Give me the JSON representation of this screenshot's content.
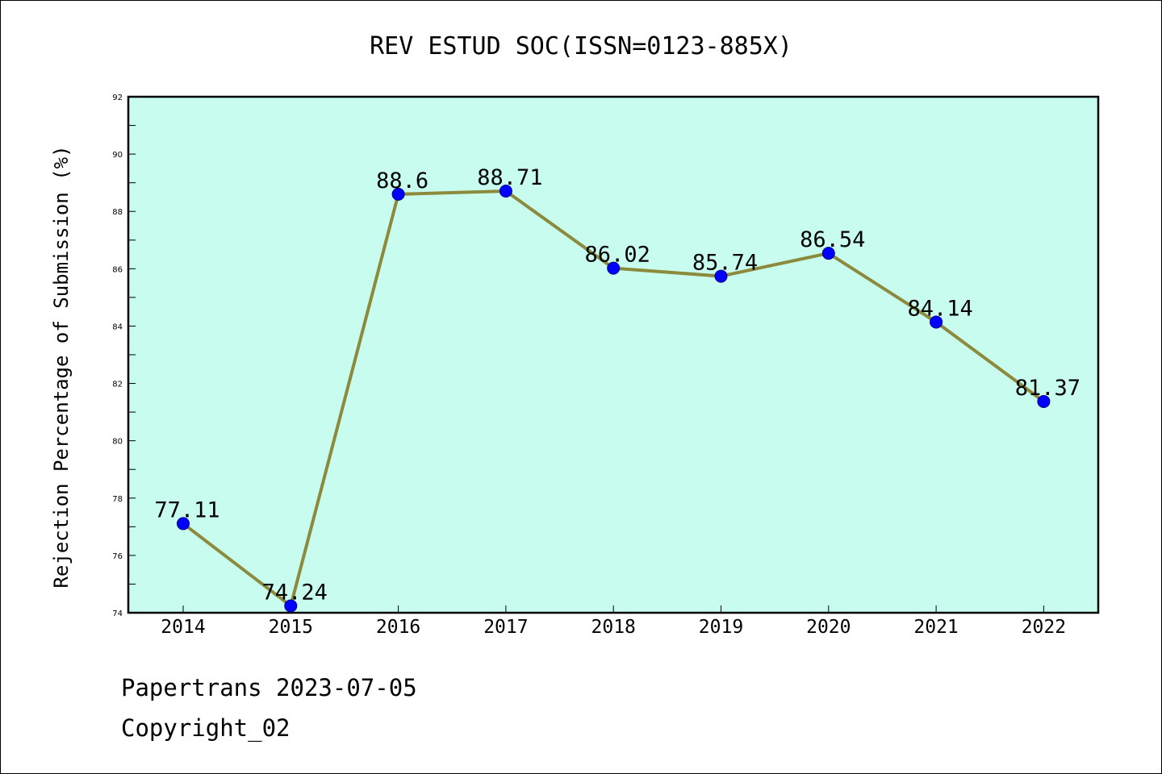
{
  "chart_data": {
    "type": "line",
    "title": "REV ESTUD SOC(ISSN=0123-885X)",
    "xlabel": "",
    "ylabel": "Rejection Percentage of Submission (%)",
    "categories": [
      "2014",
      "2015",
      "2016",
      "2017",
      "2018",
      "2019",
      "2020",
      "2021",
      "2022"
    ],
    "series": [
      {
        "values": [
          77.11,
          74.24,
          88.6,
          88.71,
          86.02,
          85.74,
          86.54,
          84.14,
          81.37
        ],
        "labels": [
          "77.11",
          "74.24",
          "88.6",
          "88.71",
          "86.02",
          "85.74",
          "86.54",
          "84.14",
          "81.37"
        ]
      }
    ],
    "ylim": [
      74,
      92
    ],
    "yticks": [
      74,
      76,
      78,
      80,
      82,
      84,
      86,
      88,
      90,
      92
    ],
    "ytick_labels": [
      "74",
      "76",
      "78",
      "80",
      "82",
      "84",
      "86",
      "88",
      "90",
      "92"
    ],
    "grid": false,
    "colors": {
      "plot_background": "#c8fcee",
      "line": "#8c8a3c",
      "marker": "#0000ff"
    }
  },
  "footer": {
    "line1": "Papertrans 2023-07-05",
    "line2": "Copyright_02"
  }
}
